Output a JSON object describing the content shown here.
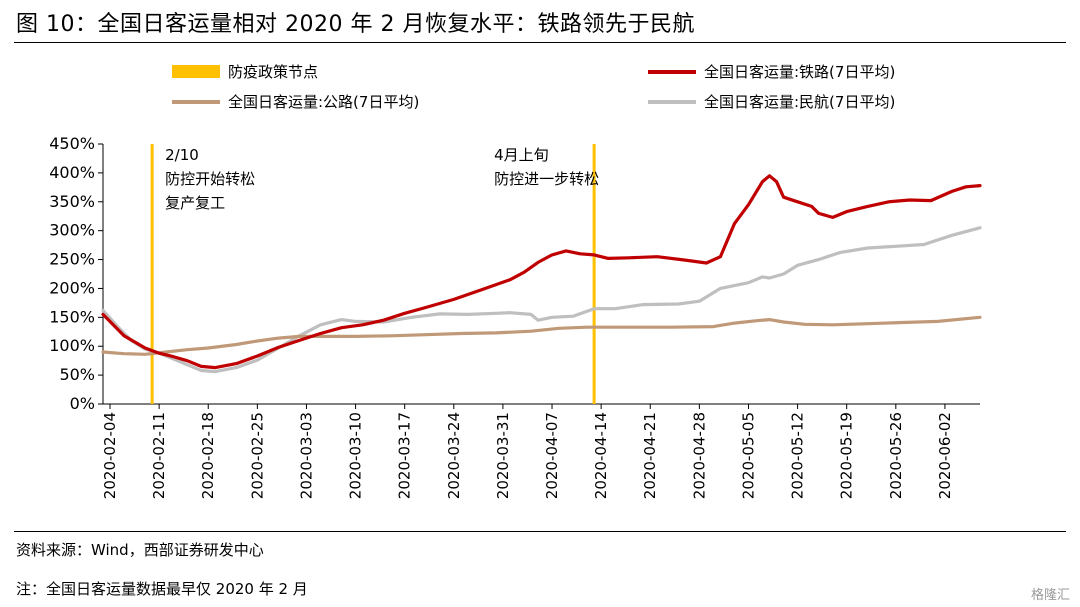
{
  "header": {
    "title": "图 10：全国日客运量相对 2020 年 2 月恢复水平：铁路领先于民航"
  },
  "footer": {
    "source": "资料来源：Wind，西部证券研发中心",
    "note": "注：全国日客运量数据最早仅 2020 年 2 月"
  },
  "watermark": "格隆汇",
  "chart_data": {
    "type": "line",
    "ylim": [
      0,
      450
    ],
    "y_ticks": [
      "0%",
      "50%",
      "100%",
      "150%",
      "200%",
      "250%",
      "300%",
      "350%",
      "400%",
      "450%"
    ],
    "x_ticks": [
      "2020-02-04",
      "2020-02-11",
      "2020-02-18",
      "2020-02-25",
      "2020-03-03",
      "2020-03-10",
      "2020-03-17",
      "2020-03-24",
      "2020-03-31",
      "2020-04-07",
      "2020-04-14",
      "2020-04-21",
      "2020-04-28",
      "2020-05-05",
      "2020-05-12",
      "2020-05-19",
      "2020-05-26",
      "2020-06-02"
    ],
    "x_range": [
      "2020-02-03",
      "2020-06-07"
    ],
    "legend": [
      {
        "label": "防疫政策节点",
        "color": "#FFC000",
        "type": "bar"
      },
      {
        "label": "全国日客运量:铁路(7日平均)",
        "color": "#C00000",
        "type": "line"
      },
      {
        "label": "全国日客运量:公路(7日平均)",
        "color": "#C09A78",
        "type": "line"
      },
      {
        "label": "全国日客运量:民航(7日平均)",
        "color": "#BFBFBF",
        "type": "line"
      }
    ],
    "events": [
      {
        "date": "2020-02-10",
        "color": "#FFC000",
        "lines": [
          "2/10",
          "防控开始转松",
          "复产复工"
        ]
      },
      {
        "date": "2020-04-13",
        "color": "#FFC000",
        "lines": [
          "4月上旬",
          "防控进一步转松"
        ]
      }
    ],
    "series": [
      {
        "name": "全国日客运量:铁路(7日平均)",
        "color": "#C00000",
        "width": 3.2,
        "points": [
          [
            "2020-02-03",
            155
          ],
          [
            "2020-02-06",
            118
          ],
          [
            "2020-02-09",
            97
          ],
          [
            "2020-02-11",
            88
          ],
          [
            "2020-02-13",
            82
          ],
          [
            "2020-02-15",
            75
          ],
          [
            "2020-02-17",
            65
          ],
          [
            "2020-02-19",
            63
          ],
          [
            "2020-02-22",
            70
          ],
          [
            "2020-02-25",
            83
          ],
          [
            "2020-02-28",
            98
          ],
          [
            "2020-03-02",
            110
          ],
          [
            "2020-03-05",
            122
          ],
          [
            "2020-03-08",
            132
          ],
          [
            "2020-03-11",
            137
          ],
          [
            "2020-03-14",
            145
          ],
          [
            "2020-03-17",
            157
          ],
          [
            "2020-03-20",
            167
          ],
          [
            "2020-03-24",
            181
          ],
          [
            "2020-03-28",
            198
          ],
          [
            "2020-04-01",
            215
          ],
          [
            "2020-04-03",
            228
          ],
          [
            "2020-04-05",
            245
          ],
          [
            "2020-04-07",
            258
          ],
          [
            "2020-04-09",
            265
          ],
          [
            "2020-04-11",
            260
          ],
          [
            "2020-04-13",
            258
          ],
          [
            "2020-04-15",
            252
          ],
          [
            "2020-04-18",
            253
          ],
          [
            "2020-04-22",
            255
          ],
          [
            "2020-04-26",
            249
          ],
          [
            "2020-04-29",
            244
          ],
          [
            "2020-05-01",
            255
          ],
          [
            "2020-05-03",
            312
          ],
          [
            "2020-05-05",
            345
          ],
          [
            "2020-05-07",
            385
          ],
          [
            "2020-05-08",
            395
          ],
          [
            "2020-05-09",
            385
          ],
          [
            "2020-05-10",
            358
          ],
          [
            "2020-05-12",
            350
          ],
          [
            "2020-05-14",
            342
          ],
          [
            "2020-05-15",
            330
          ],
          [
            "2020-05-17",
            323
          ],
          [
            "2020-05-19",
            333
          ],
          [
            "2020-05-22",
            342
          ],
          [
            "2020-05-25",
            350
          ],
          [
            "2020-05-28",
            353
          ],
          [
            "2020-05-31",
            352
          ],
          [
            "2020-06-03",
            368
          ],
          [
            "2020-06-05",
            376
          ],
          [
            "2020-06-07",
            378
          ]
        ]
      },
      {
        "name": "全国日客运量:公路(7日平均)",
        "color": "#C09A78",
        "width": 3.2,
        "points": [
          [
            "2020-02-03",
            90
          ],
          [
            "2020-02-06",
            87
          ],
          [
            "2020-02-09",
            86
          ],
          [
            "2020-02-12",
            90
          ],
          [
            "2020-02-15",
            94
          ],
          [
            "2020-02-18",
            97
          ],
          [
            "2020-02-22",
            103
          ],
          [
            "2020-02-25",
            109
          ],
          [
            "2020-02-28",
            114
          ],
          [
            "2020-03-02",
            117
          ],
          [
            "2020-03-06",
            117
          ],
          [
            "2020-03-10",
            117
          ],
          [
            "2020-03-15",
            118
          ],
          [
            "2020-03-20",
            120
          ],
          [
            "2020-03-25",
            122
          ],
          [
            "2020-03-30",
            123
          ],
          [
            "2020-04-04",
            126
          ],
          [
            "2020-04-08",
            131
          ],
          [
            "2020-04-12",
            133
          ],
          [
            "2020-04-18",
            133
          ],
          [
            "2020-04-24",
            133
          ],
          [
            "2020-04-30",
            134
          ],
          [
            "2020-05-03",
            140
          ],
          [
            "2020-05-06",
            144
          ],
          [
            "2020-05-08",
            146
          ],
          [
            "2020-05-10",
            142
          ],
          [
            "2020-05-13",
            138
          ],
          [
            "2020-05-17",
            137
          ],
          [
            "2020-05-22",
            139
          ],
          [
            "2020-05-27",
            141
          ],
          [
            "2020-06-01",
            143
          ],
          [
            "2020-06-07",
            150
          ]
        ]
      },
      {
        "name": "全国日客运量:民航(7日平均)",
        "color": "#BFBFBF",
        "width": 3.2,
        "points": [
          [
            "2020-02-03",
            162
          ],
          [
            "2020-02-05",
            135
          ],
          [
            "2020-02-07",
            110
          ],
          [
            "2020-02-09",
            95
          ],
          [
            "2020-02-11",
            88
          ],
          [
            "2020-02-13",
            78
          ],
          [
            "2020-02-15",
            68
          ],
          [
            "2020-02-17",
            58
          ],
          [
            "2020-02-19",
            56
          ],
          [
            "2020-02-22",
            63
          ],
          [
            "2020-02-25",
            76
          ],
          [
            "2020-02-28",
            97
          ],
          [
            "2020-03-02",
            118
          ],
          [
            "2020-03-05",
            137
          ],
          [
            "2020-03-08",
            146
          ],
          [
            "2020-03-10",
            143
          ],
          [
            "2020-03-14",
            142
          ],
          [
            "2020-03-18",
            150
          ],
          [
            "2020-03-22",
            156
          ],
          [
            "2020-03-26",
            155
          ],
          [
            "2020-03-30",
            157
          ],
          [
            "2020-04-01",
            158
          ],
          [
            "2020-04-04",
            155
          ],
          [
            "2020-04-05",
            145
          ],
          [
            "2020-04-07",
            150
          ],
          [
            "2020-04-10",
            152
          ],
          [
            "2020-04-13",
            165
          ],
          [
            "2020-04-16",
            165
          ],
          [
            "2020-04-20",
            172
          ],
          [
            "2020-04-25",
            173
          ],
          [
            "2020-04-28",
            178
          ],
          [
            "2020-05-01",
            200
          ],
          [
            "2020-05-03",
            205
          ],
          [
            "2020-05-05",
            210
          ],
          [
            "2020-05-07",
            220
          ],
          [
            "2020-05-08",
            218
          ],
          [
            "2020-05-10",
            225
          ],
          [
            "2020-05-12",
            240
          ],
          [
            "2020-05-15",
            250
          ],
          [
            "2020-05-18",
            262
          ],
          [
            "2020-05-22",
            270
          ],
          [
            "2020-05-26",
            273
          ],
          [
            "2020-05-30",
            276
          ],
          [
            "2020-06-03",
            292
          ],
          [
            "2020-06-07",
            305
          ]
        ]
      }
    ]
  }
}
